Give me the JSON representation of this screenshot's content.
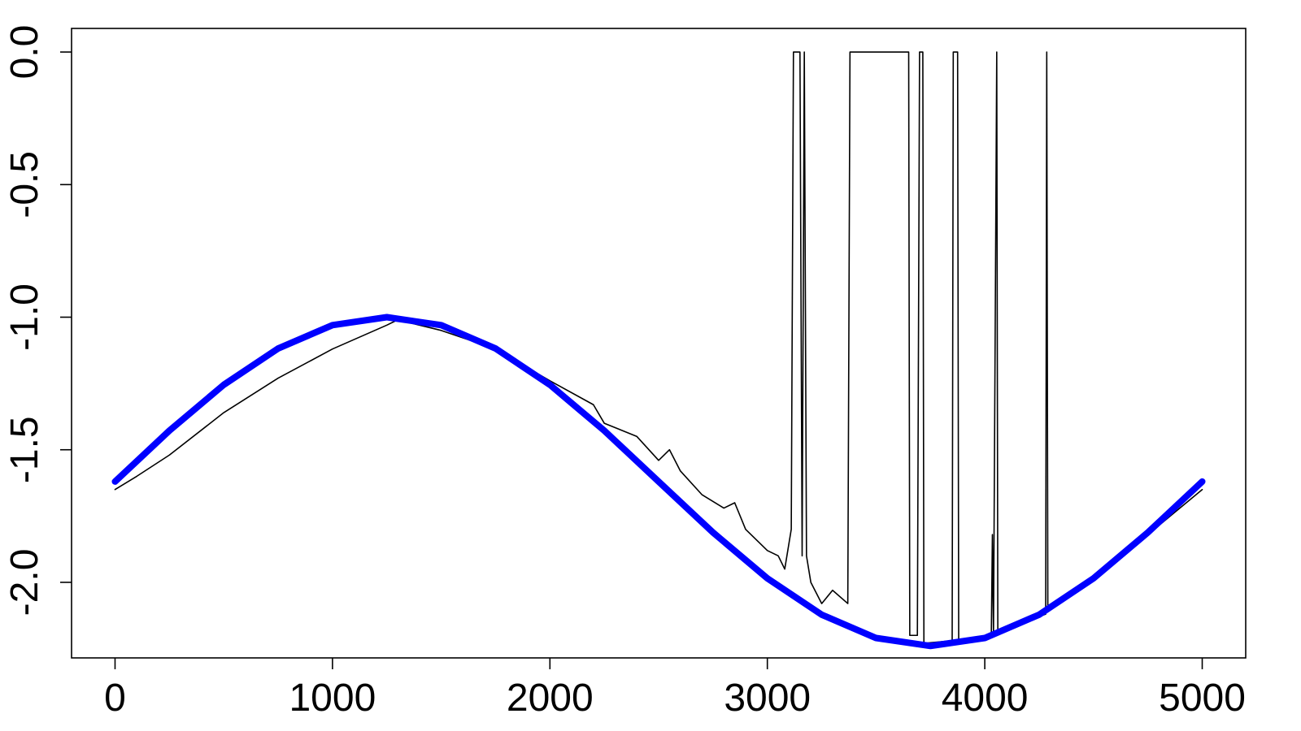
{
  "chart_data": {
    "type": "line",
    "xlim": [
      -200,
      5200
    ],
    "ylim": [
      -2.285,
      0.089
    ],
    "xticks": [
      0,
      1000,
      2000,
      3000,
      4000,
      5000
    ],
    "yticks": [
      {
        "value": -2,
        "label": "-2.0"
      },
      -1.5,
      {
        "value": -1,
        "label": "-1.0"
      },
      -0.5,
      {
        "value": 0,
        "label": "0.0"
      }
    ],
    "series": [
      {
        "color": "#000000",
        "linewidth": 1.6,
        "x": [
          0,
          100,
          250,
          500,
          750,
          1000,
          1250,
          1300,
          1500,
          1750,
          2000,
          2200,
          2250,
          2400,
          2500,
          2550,
          2600,
          2700,
          2800,
          2850,
          2900,
          3000,
          3050,
          3080,
          3110,
          3120,
          3150,
          3160,
          3170,
          3180,
          3200,
          3250,
          3300,
          3370,
          3380,
          3650,
          3655,
          3690,
          3700,
          3715,
          3720,
          3850,
          3855,
          3875,
          3880,
          4030,
          4035,
          4040,
          4055,
          4060,
          4280,
          4285,
          4290,
          4500,
          4750,
          5000
        ],
        "values": [
          -1.65,
          -1.6,
          -1.52,
          -1.36,
          -1.23,
          -1.12,
          -1.03,
          -1.01,
          -1.05,
          -1.12,
          -1.24,
          -1.33,
          -1.4,
          -1.45,
          -1.54,
          -1.5,
          -1.58,
          -1.67,
          -1.72,
          -1.7,
          -1.8,
          -1.88,
          -1.9,
          -1.95,
          -1.8,
          0,
          0,
          -1.9,
          0,
          -1.9,
          -2.0,
          -2.08,
          -2.03,
          -2.08,
          0,
          0,
          -2.2,
          -2.2,
          0,
          0,
          -2.23,
          -2.22,
          0,
          0,
          -2.22,
          -2.2,
          -1.82,
          -2.2,
          0,
          -2.19,
          -2.12,
          0,
          -2.11,
          -1.98,
          -1.82,
          -1.65
        ]
      },
      {
        "color": "#0000ff",
        "linewidth": 8,
        "x": [
          0,
          250,
          500,
          750,
          1000,
          1250,
          1500,
          1750,
          2000,
          2250,
          2500,
          2750,
          3000,
          3250,
          3500,
          3750,
          4000,
          4250,
          4500,
          4750,
          5000
        ],
        "values": [
          -1.62,
          -1.428,
          -1.255,
          -1.118,
          -1.03,
          -1.0,
          -1.03,
          -1.118,
          -1.255,
          -1.428,
          -1.62,
          -1.812,
          -1.985,
          -2.122,
          -2.21,
          -2.24,
          -2.21,
          -2.122,
          -1.985,
          -1.812,
          -1.62
        ]
      }
    ]
  }
}
